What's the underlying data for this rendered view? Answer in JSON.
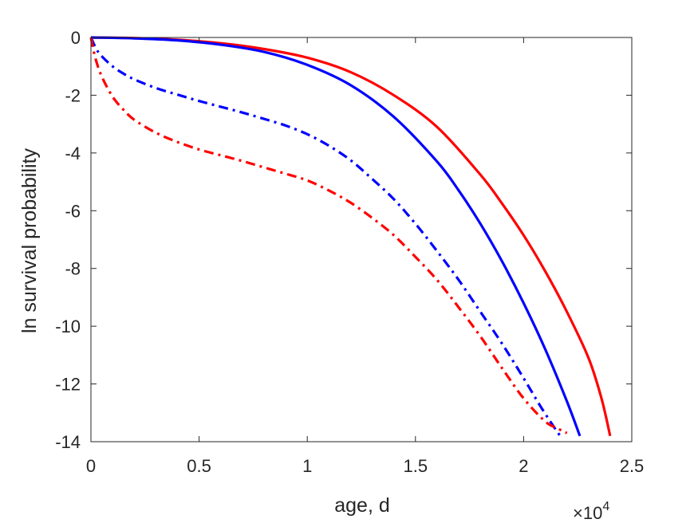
{
  "chart_data": {
    "type": "line",
    "title": "",
    "xlabel": "age, d",
    "ylabel": "ln survival probability",
    "x_multiplier_label": "×10",
    "x_multiplier_exponent": "4",
    "xlim": [
      0,
      25000
    ],
    "ylim": [
      -14,
      0
    ],
    "x_ticks": [
      0,
      5000,
      10000,
      15000,
      20000,
      25000
    ],
    "x_tick_labels": [
      "0",
      "0.5",
      "1",
      "1.5",
      "2",
      "2.5"
    ],
    "y_ticks": [
      0,
      -2,
      -4,
      -6,
      -8,
      -10,
      -12,
      -14
    ],
    "y_tick_labels": [
      "0",
      "-2",
      "-4",
      "-6",
      "-8",
      "-10",
      "-12",
      "-14"
    ],
    "grid": false,
    "legend": "none",
    "series": [
      {
        "color": "#ff0000",
        "style": "solid",
        "x": [
          0,
          2000,
          4000,
          6000,
          8000,
          10000,
          12000,
          14000,
          16000,
          18000,
          19000,
          20000,
          21000,
          22000,
          23000,
          23600,
          24000
        ],
        "y": [
          0,
          -0.02,
          -0.08,
          -0.2,
          -0.4,
          -0.7,
          -1.2,
          -2.0,
          -3.1,
          -4.75,
          -5.75,
          -6.85,
          -8.1,
          -9.5,
          -11.1,
          -12.5,
          -13.8
        ]
      },
      {
        "color": "#0000ff",
        "style": "solid",
        "x": [
          0,
          2000,
          4000,
          6000,
          8000,
          10000,
          12000,
          14000,
          16000,
          17000,
          18000,
          19000,
          20000,
          21000,
          22000,
          22600
        ],
        "y": [
          0,
          -0.03,
          -0.1,
          -0.25,
          -0.5,
          -0.95,
          -1.65,
          -2.75,
          -4.3,
          -5.3,
          -6.45,
          -7.75,
          -9.2,
          -10.8,
          -12.6,
          -13.8
        ]
      },
      {
        "color": "#0000ff",
        "style": "dashdot",
        "x": [
          0,
          250,
          500,
          1000,
          1500,
          2000,
          3000,
          4000,
          5000,
          6000,
          7000,
          8000,
          9000,
          10000,
          11000,
          12000,
          13000,
          14000,
          15000,
          16000,
          17000,
          18000,
          19000,
          20000,
          20800,
          21500,
          21700
        ],
        "y": [
          0,
          -0.4,
          -0.65,
          -1.0,
          -1.25,
          -1.45,
          -1.75,
          -1.98,
          -2.2,
          -2.4,
          -2.6,
          -2.82,
          -3.05,
          -3.35,
          -3.75,
          -4.25,
          -4.9,
          -5.6,
          -6.45,
          -7.4,
          -8.4,
          -9.5,
          -10.6,
          -11.8,
          -12.8,
          -13.6,
          -13.8
        ]
      },
      {
        "color": "#ff0000",
        "style": "dashdot",
        "x": [
          0,
          200,
          500,
          1000,
          1500,
          2000,
          3000,
          4000,
          5000,
          6000,
          7000,
          8000,
          9000,
          10000,
          11000,
          12000,
          13000,
          14000,
          15000,
          16000,
          17000,
          18000,
          19000,
          20000,
          21000,
          21600,
          22000
        ],
        "y": [
          0,
          -0.7,
          -1.35,
          -2.05,
          -2.5,
          -2.85,
          -3.3,
          -3.62,
          -3.88,
          -4.08,
          -4.28,
          -4.5,
          -4.72,
          -4.95,
          -5.3,
          -5.72,
          -6.25,
          -6.85,
          -7.6,
          -8.4,
          -9.35,
          -10.35,
          -11.45,
          -12.5,
          -13.3,
          -13.55,
          -13.7
        ]
      }
    ]
  }
}
